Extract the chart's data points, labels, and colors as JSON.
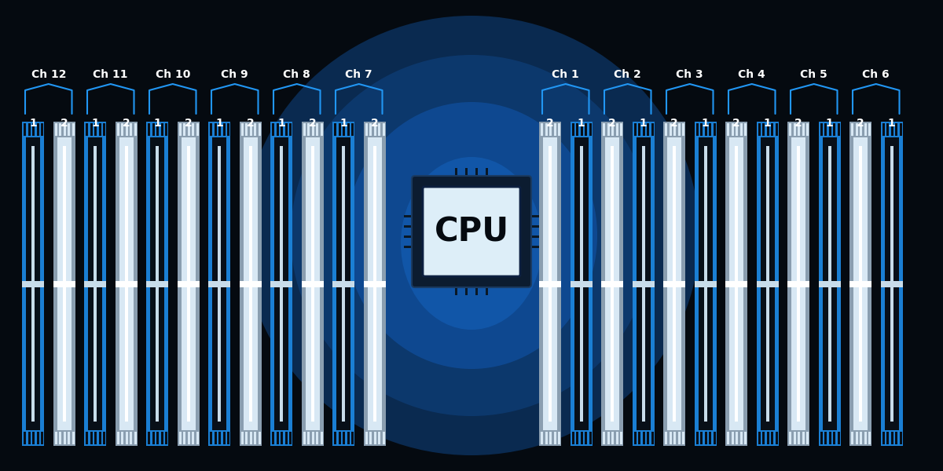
{
  "bg_color": "#050a10",
  "bank_blue": "#1a7fd4",
  "bank_white_outer": "#b0c4d8",
  "bank_dark_inner": "#080f18",
  "bank_white_inner": "#dce8f0",
  "bank_center_line": "#c8dcea",
  "cpu_bg": "#ddeef8",
  "cpu_border": "#0d2040",
  "cpu_text": "#050a10",
  "label_color": "#ffffff",
  "bracket_color": "#2196f3",
  "left_channels": [
    "Ch 12",
    "Ch 11",
    "Ch 10",
    "Ch 9",
    "Ch 8",
    "Ch 7"
  ],
  "right_channels": [
    "Ch 1",
    "Ch 2",
    "Ch 3",
    "Ch 4",
    "Ch 5",
    "Ch 6"
  ],
  "left_bank_labels": [
    [
      "1",
      "2"
    ],
    [
      "1",
      "2"
    ],
    [
      "1",
      "2"
    ],
    [
      "1",
      "2"
    ],
    [
      "1",
      "2"
    ],
    [
      "1",
      "2"
    ]
  ],
  "right_bank_labels": [
    [
      "2",
      "1"
    ],
    [
      "2",
      "1"
    ],
    [
      "2",
      "1"
    ],
    [
      "2",
      "1"
    ],
    [
      "2",
      "1"
    ],
    [
      "2",
      "1"
    ]
  ],
  "figsize": [
    12,
    6
  ],
  "dpi": 100
}
